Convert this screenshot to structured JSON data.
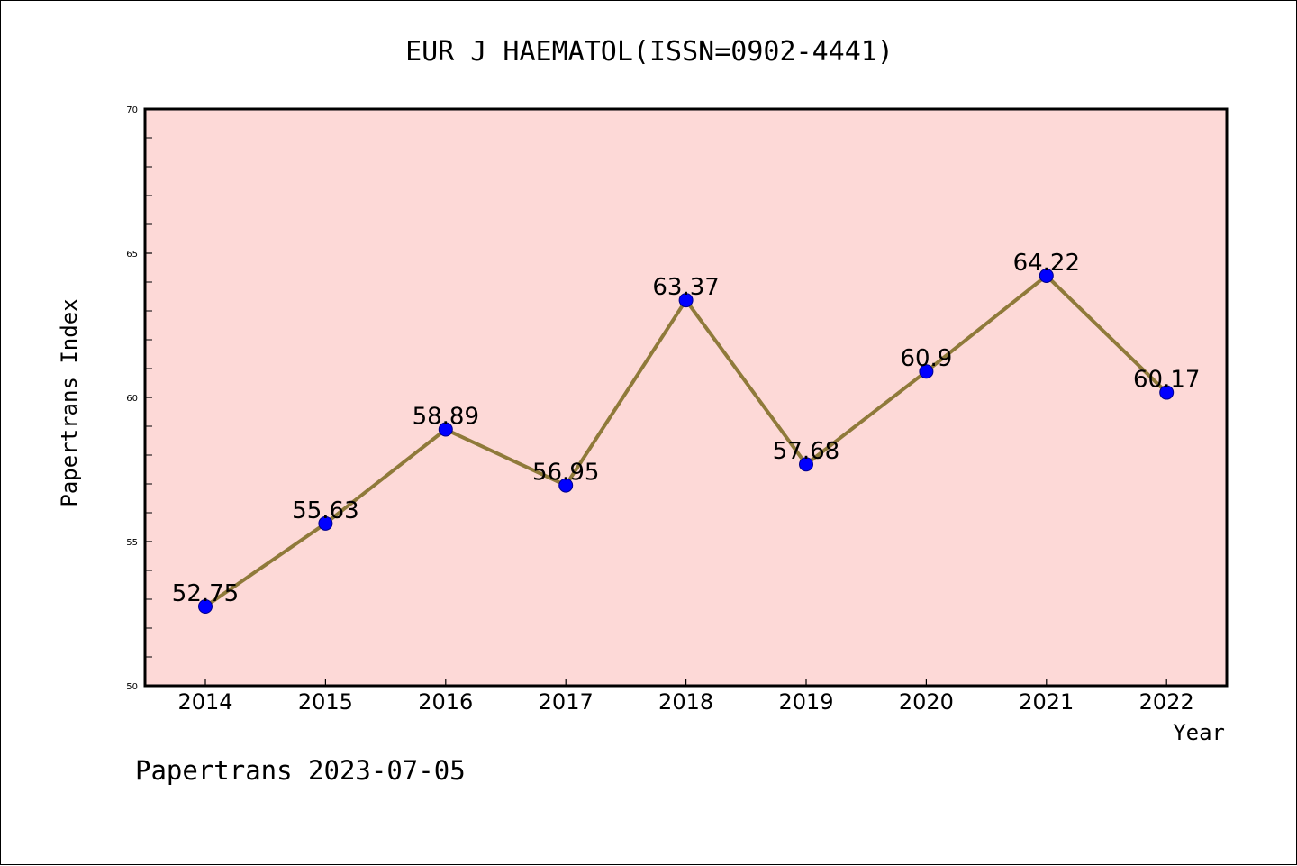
{
  "chart_data": {
    "type": "line",
    "title": "EUR J HAEMATOL(ISSN=0902-4441)",
    "xlabel": "Year",
    "ylabel": "Papertrans Index",
    "categories": [
      "2014",
      "2015",
      "2016",
      "2017",
      "2018",
      "2019",
      "2020",
      "2021",
      "2022"
    ],
    "values": [
      52.75,
      55.63,
      58.89,
      56.95,
      63.37,
      57.68,
      60.9,
      64.22,
      60.17
    ],
    "data_labels": [
      "52.75",
      "55.63",
      "58.89",
      "56.95",
      "63.37",
      "57.68",
      "60.9",
      "64.22",
      "60.17"
    ],
    "ylim": [
      50,
      70
    ],
    "yticks": [
      "50",
      "55",
      "60",
      "65",
      "70"
    ],
    "grid": false,
    "plot_background": "#fdd9d7",
    "line_color": "#8f7a3a",
    "marker_color": "#0000ff"
  },
  "footer": "Papertrans 2023-07-05"
}
